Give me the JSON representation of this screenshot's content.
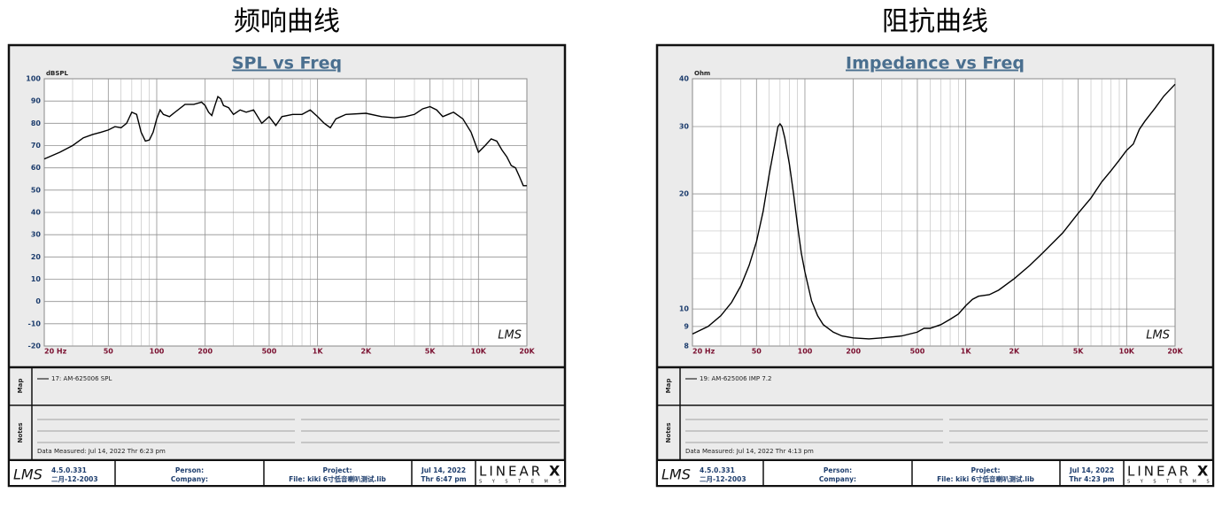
{
  "chart_data": [
    {
      "type": "line",
      "heading": "频响曲线",
      "title": "SPL vs Freq",
      "y_label": "dBSPL",
      "watermark": "LMS",
      "xscale": "log",
      "yscale": "linear",
      "grid": true,
      "xlim": [
        20,
        20000
      ],
      "ylim": [
        -20,
        100
      ],
      "xticks": [
        {
          "value": 20,
          "label": "20 Hz"
        },
        50,
        100,
        200,
        500,
        {
          "value": 1000,
          "label": "1K"
        },
        {
          "value": 2000,
          "label": "2K"
        },
        {
          "value": 5000,
          "label": "5K"
        },
        {
          "value": 10000,
          "label": "10K"
        },
        {
          "value": 20000,
          "label": "20K"
        }
      ],
      "xminorticks": [
        30,
        40,
        60,
        70,
        80,
        90,
        300,
        400,
        600,
        700,
        800,
        900,
        3000,
        4000,
        6000,
        7000,
        8000,
        9000
      ],
      "yticks": [
        -20,
        -10,
        0,
        10,
        20,
        30,
        40,
        50,
        60,
        70,
        80,
        90,
        100
      ],
      "yminorticks": [],
      "x": [
        20,
        25,
        30,
        35,
        40,
        45,
        50,
        55,
        60,
        65,
        70,
        75,
        80,
        85,
        90,
        95,
        100,
        105,
        110,
        120,
        130,
        150,
        170,
        190,
        200,
        210,
        220,
        230,
        240,
        250,
        260,
        280,
        300,
        330,
        360,
        400,
        450,
        500,
        550,
        600,
        700,
        800,
        900,
        1000,
        1100,
        1200,
        1300,
        1500,
        2000,
        2500,
        3000,
        3500,
        4000,
        4500,
        5000,
        5500,
        6000,
        7000,
        8000,
        9000,
        10000,
        11000,
        12000,
        13000,
        14000,
        15000,
        16000,
        17000,
        18000,
        19000,
        20000
      ],
      "series": [
        {
          "name": "17: AM-625006 SPL",
          "color": "#000000",
          "values": [
            64,
            67,
            70,
            73.5,
            75,
            76,
            77,
            78.5,
            78,
            80,
            85,
            84,
            76,
            72,
            72.5,
            76,
            82,
            86,
            84,
            83,
            85,
            88.5,
            88.5,
            89.5,
            88,
            85,
            83.5,
            88,
            92,
            91,
            88,
            87,
            84,
            86,
            85,
            86,
            80,
            83,
            79,
            83,
            84,
            84,
            86,
            83,
            80,
            78,
            82,
            84,
            84.5,
            83,
            82.5,
            83,
            84,
            86.5,
            87.5,
            86,
            83,
            85,
            82,
            76,
            67,
            70,
            73,
            72,
            68,
            65,
            61,
            60,
            56,
            52,
            52
          ]
        }
      ],
      "map_label": "Map",
      "notes_label": "Notes",
      "measured": "Data Measured: Jul 14, 2022  Thr  6:23 pm",
      "footer": {
        "logo": "LMS",
        "version": "4.5.0.331",
        "build_date": "二月-12-2003",
        "person": "Person:",
        "company": "Company:",
        "project": "Project:",
        "file": "File: kiki 6寸低音喇叭测试.lib",
        "date": "Jul 14, 2022",
        "time": "Thr  6:47 pm",
        "brand": "LINEAR",
        "brand_x": "X",
        "brand_sub": "S Y S T E M S"
      }
    },
    {
      "type": "line",
      "heading": "阻抗曲线",
      "title": "Impedance vs Freq",
      "y_label": "Ohm",
      "watermark": "LMS",
      "xscale": "log",
      "yscale": "log",
      "grid": true,
      "xlim": [
        20,
        20000
      ],
      "ylim": [
        8,
        40
      ],
      "xticks": [
        {
          "value": 20,
          "label": "20 Hz"
        },
        50,
        100,
        200,
        500,
        {
          "value": 1000,
          "label": "1K"
        },
        {
          "value": 2000,
          "label": "2K"
        },
        {
          "value": 5000,
          "label": "5K"
        },
        {
          "value": 10000,
          "label": "10K"
        },
        {
          "value": 20000,
          "label": "20K"
        }
      ],
      "xminorticks": [
        30,
        40,
        60,
        70,
        80,
        90,
        300,
        400,
        600,
        700,
        800,
        900,
        3000,
        4000,
        6000,
        7000,
        8000,
        9000
      ],
      "yticks": [
        8,
        9,
        10,
        20,
        30,
        40
      ],
      "yminorticks": [
        12,
        14,
        16,
        18
      ],
      "x": [
        20,
        25,
        30,
        35,
        40,
        45,
        50,
        55,
        60,
        65,
        68,
        70,
        72,
        75,
        80,
        85,
        90,
        95,
        100,
        110,
        120,
        130,
        150,
        170,
        200,
        250,
        300,
        400,
        500,
        550,
        600,
        700,
        800,
        900,
        1000,
        1100,
        1200,
        1400,
        1600,
        2000,
        2500,
        3000,
        4000,
        5000,
        6000,
        7000,
        8000,
        9000,
        10000,
        11000,
        12000,
        13000,
        15000,
        17000,
        20000
      ],
      "series": [
        {
          "name": "19: AM-625006 IMP 7.2",
          "color": "#000000",
          "values": [
            8.6,
            9,
            9.6,
            10.4,
            11.5,
            13,
            15,
            18,
            22.5,
            27,
            30,
            30.5,
            30,
            28,
            24,
            20,
            16.5,
            14,
            12.5,
            10.5,
            9.6,
            9.1,
            8.7,
            8.5,
            8.4,
            8.35,
            8.4,
            8.5,
            8.7,
            8.9,
            8.9,
            9.1,
            9.4,
            9.7,
            10.2,
            10.6,
            10.8,
            10.9,
            11.2,
            12,
            13,
            14,
            15.8,
            17.8,
            19.5,
            21.5,
            23,
            24.5,
            26,
            27,
            29.5,
            31,
            33.5,
            36,
            38.7
          ]
        }
      ],
      "map_label": "Map",
      "notes_label": "Notes",
      "measured": "Data Measured: Jul 14, 2022  Thr  4:13 pm",
      "footer": {
        "logo": "LMS",
        "version": "4.5.0.331",
        "build_date": "二月-12-2003",
        "person": "Person:",
        "company": "Company:",
        "project": "Project:",
        "file": "File: kiki 6寸低音喇叭测试.lib",
        "date": "Jul 14, 2022",
        "time": "Thr  4:23 pm",
        "brand": "LINEAR",
        "brand_x": "X",
        "brand_sub": "S Y S T E M S"
      }
    }
  ]
}
